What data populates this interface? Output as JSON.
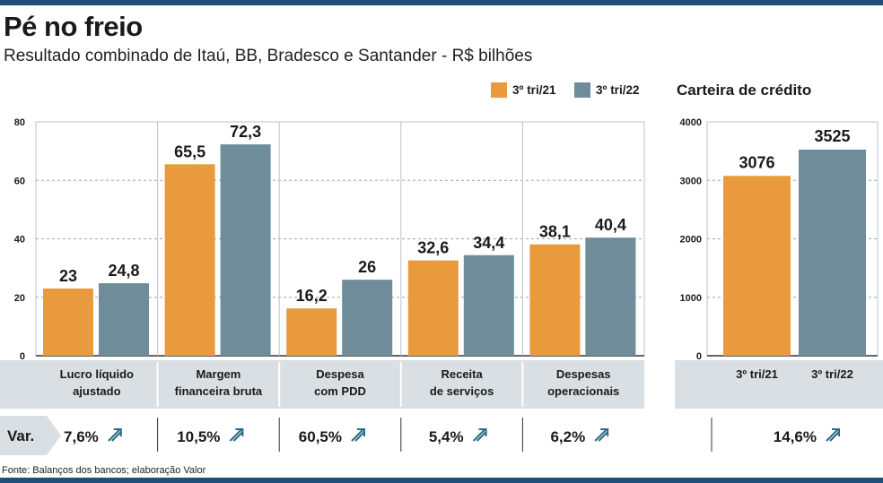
{
  "title": "Pé no freio",
  "subtitle": "Resultado combinado de Itaú, BB, Bradesco e Santander - R$ bilhões",
  "legend": [
    {
      "label": "3º tri/21",
      "color": "#e89a3c"
    },
    {
      "label": "3º tri/22",
      "color": "#6e8c99"
    }
  ],
  "source": "Fonte: Balanços dos bancos; elaboração Valor",
  "var_label": "Var.",
  "chart_data": [
    {
      "type": "bar",
      "ylim": [
        0,
        80
      ],
      "yticks": [
        0,
        20,
        40,
        60,
        80
      ],
      "grid": true,
      "categories": [
        [
          "Lucro líquido",
          "ajustado"
        ],
        [
          "Margem",
          "financeira bruta"
        ],
        [
          "Despesa",
          "com PDD"
        ],
        [
          "Receita",
          "de serviços"
        ],
        [
          "Despesas",
          "operacionais"
        ]
      ],
      "series": [
        {
          "name": "3º tri/21",
          "values": [
            23,
            65.5,
            16.2,
            32.6,
            38.1
          ],
          "labels": [
            "23",
            "65,5",
            "16,2",
            "32,6",
            "38,1"
          ]
        },
        {
          "name": "3º tri/22",
          "values": [
            24.8,
            72.3,
            26,
            34.4,
            40.4
          ],
          "labels": [
            "24,8",
            "72,3",
            "26",
            "34,4",
            "40,4"
          ]
        }
      ],
      "variation": [
        "7,6%",
        "10,5%",
        "60,5%",
        "5,4%",
        "6,2%"
      ]
    },
    {
      "type": "bar",
      "title": "Carteira de crédito",
      "ylim": [
        0,
        4000
      ],
      "yticks": [
        0,
        1000,
        2000,
        3000,
        4000
      ],
      "grid": true,
      "categories": [
        "3º tri/21",
        "3º tri/22"
      ],
      "values": [
        3076,
        3525
      ],
      "labels": [
        "3076",
        "3525"
      ],
      "variation": [
        "14,6%"
      ]
    }
  ]
}
